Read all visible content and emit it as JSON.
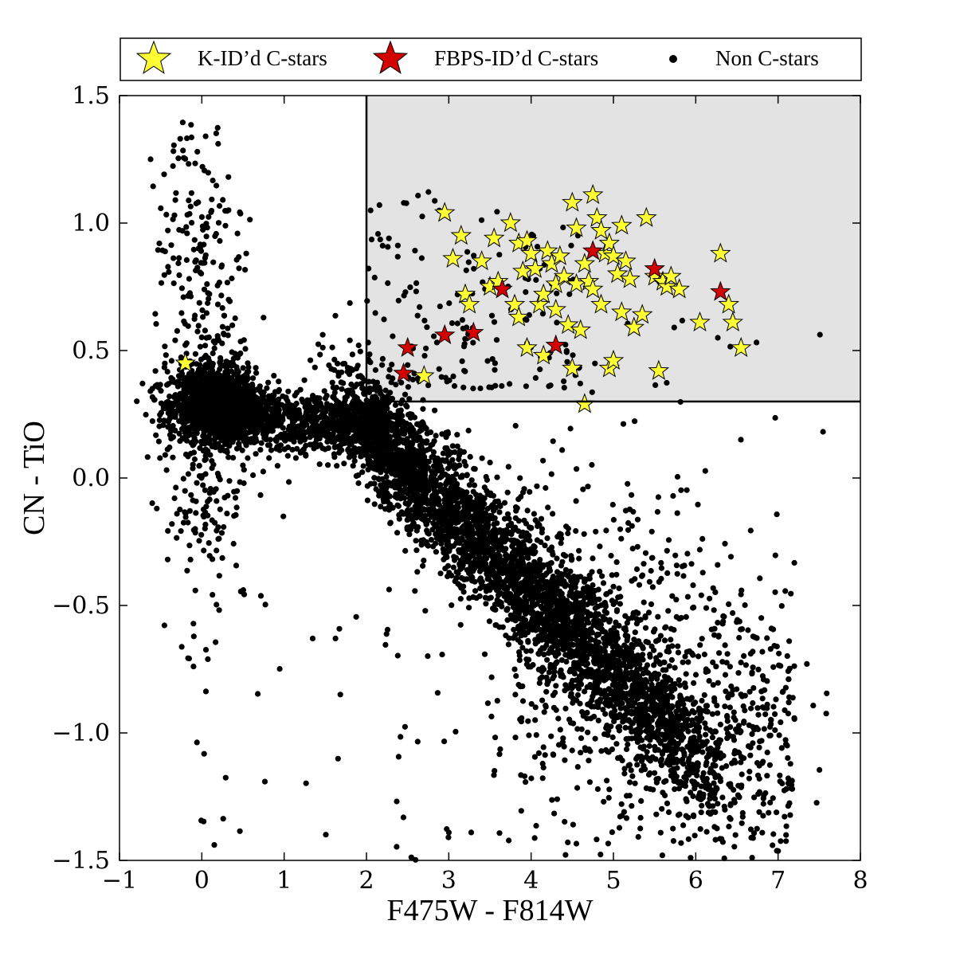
{
  "chart_data": {
    "type": "scatter",
    "title": "",
    "xlabel": "F475W - F814W",
    "ylabel": "CN - TiO",
    "xlim": [
      -1,
      8
    ],
    "ylim": [
      -1.5,
      1.5
    ],
    "x_ticks": [
      -1,
      0,
      1,
      2,
      3,
      4,
      5,
      6,
      7,
      8
    ],
    "x_tick_labels": [
      "−1",
      "0",
      "1",
      "2",
      "3",
      "4",
      "5",
      "6",
      "7",
      "8"
    ],
    "y_ticks": [
      -1.5,
      -1.0,
      -0.5,
      0.0,
      0.5,
      1.0,
      1.5
    ],
    "y_tick_labels": [
      "−1.5",
      "−1.0",
      "−0.5",
      "0.0",
      "0.5",
      "1.0",
      "1.5"
    ],
    "grid": false,
    "legend_position": "top, above plot",
    "selection_region": {
      "x_min": 2.0,
      "y_min": 0.3,
      "fill": "#e3e3e3",
      "edge": "#000000"
    },
    "series": [
      {
        "name": "K-ID’d C-stars",
        "marker": "star",
        "color": "#ffff33",
        "points": [
          [
            -0.2,
            0.45
          ],
          [
            2.7,
            0.4
          ],
          [
            2.95,
            1.04
          ],
          [
            3.05,
            0.86
          ],
          [
            3.15,
            0.95
          ],
          [
            3.2,
            0.72
          ],
          [
            3.25,
            0.68
          ],
          [
            3.4,
            0.85
          ],
          [
            3.5,
            0.75
          ],
          [
            3.55,
            0.94
          ],
          [
            3.6,
            0.77
          ],
          [
            3.75,
            1.0
          ],
          [
            3.8,
            0.68
          ],
          [
            3.85,
            0.63
          ],
          [
            3.85,
            0.92
          ],
          [
            3.9,
            0.81
          ],
          [
            3.95,
            0.93
          ],
          [
            3.95,
            0.51
          ],
          [
            4.0,
            0.88
          ],
          [
            4.05,
            0.82
          ],
          [
            4.1,
            0.68
          ],
          [
            4.15,
            0.72
          ],
          [
            4.15,
            0.48
          ],
          [
            4.2,
            0.89
          ],
          [
            4.25,
            0.84
          ],
          [
            4.3,
            0.76
          ],
          [
            4.3,
            0.66
          ],
          [
            4.35,
            0.87
          ],
          [
            4.4,
            0.79
          ],
          [
            4.45,
            0.6
          ],
          [
            4.5,
            1.08
          ],
          [
            4.5,
            0.43
          ],
          [
            4.55,
            0.98
          ],
          [
            4.55,
            0.76
          ],
          [
            4.6,
            0.58
          ],
          [
            4.65,
            0.84
          ],
          [
            4.7,
            0.77
          ],
          [
            4.75,
            1.11
          ],
          [
            4.75,
            0.74
          ],
          [
            4.8,
            1.02
          ],
          [
            4.85,
            0.97
          ],
          [
            4.85,
            0.68
          ],
          [
            4.9,
            0.88
          ],
          [
            4.95,
            0.92
          ],
          [
            4.95,
            0.43
          ],
          [
            5.0,
            0.87
          ],
          [
            5.0,
            0.46
          ],
          [
            5.05,
            0.8
          ],
          [
            5.1,
            0.99
          ],
          [
            5.1,
            0.65
          ],
          [
            5.15,
            0.85
          ],
          [
            5.2,
            0.78
          ],
          [
            5.25,
            0.59
          ],
          [
            5.35,
            0.64
          ],
          [
            5.4,
            1.02
          ],
          [
            5.5,
            0.79
          ],
          [
            5.55,
            0.42
          ],
          [
            5.6,
            0.77
          ],
          [
            5.65,
            0.75
          ],
          [
            5.7,
            0.79
          ],
          [
            5.8,
            0.74
          ],
          [
            6.05,
            0.61
          ],
          [
            6.3,
            0.88
          ],
          [
            6.4,
            0.68
          ],
          [
            6.45,
            0.61
          ],
          [
            6.55,
            0.51
          ],
          [
            4.65,
            0.29
          ]
        ]
      },
      {
        "name": "FBPS-ID’d C-stars",
        "marker": "star",
        "color": "#d40000",
        "points": [
          [
            2.5,
            0.51
          ],
          [
            2.45,
            0.41
          ],
          [
            2.95,
            0.56
          ],
          [
            3.3,
            0.57
          ],
          [
            3.65,
            0.74
          ],
          [
            4.3,
            0.52
          ],
          [
            4.75,
            0.89
          ],
          [
            5.5,
            0.82
          ],
          [
            6.3,
            0.73
          ]
        ]
      },
      {
        "name": "Non C-stars",
        "marker": "dot",
        "color": "#000000",
        "points": []
      }
    ]
  }
}
